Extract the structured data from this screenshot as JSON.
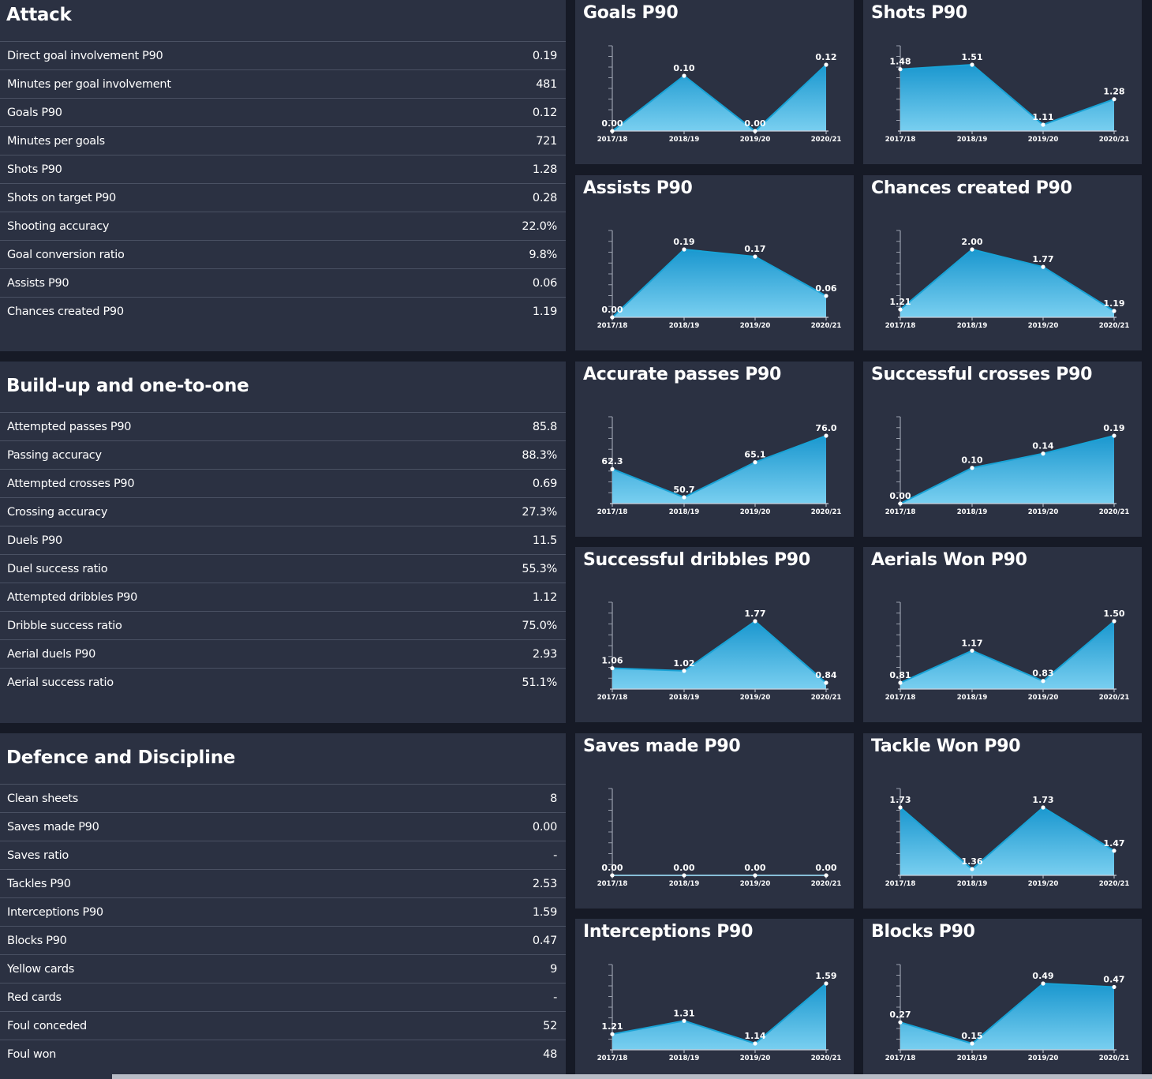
{
  "colors": {
    "panel": "#2b3142",
    "background": "#161a26",
    "line": "#19a3d6",
    "fill_top": "#1a97cf",
    "fill_bottom": "#79cff0"
  },
  "sections": [
    {
      "title": "Attack",
      "rows": [
        {
          "label": "Direct goal involvement P90",
          "value": "0.19"
        },
        {
          "label": "Minutes per goal involvement",
          "value": "481"
        },
        {
          "label": "Goals P90",
          "value": "0.12"
        },
        {
          "label": "Minutes per goals",
          "value": "721"
        },
        {
          "label": "Shots P90",
          "value": "1.28"
        },
        {
          "label": "Shots on target P90",
          "value": "0.28"
        },
        {
          "label": "Shooting accuracy",
          "value": "22.0%"
        },
        {
          "label": "Goal conversion ratio",
          "value": "9.8%"
        },
        {
          "label": "Assists P90",
          "value": "0.06"
        },
        {
          "label": "Chances created P90",
          "value": "1.19"
        }
      ]
    },
    {
      "title": "Build-up and one-to-one",
      "rows": [
        {
          "label": "Attempted passes P90",
          "value": "85.8"
        },
        {
          "label": "Passing accuracy",
          "value": "88.3%"
        },
        {
          "label": "Attempted crosses P90",
          "value": "0.69"
        },
        {
          "label": "Crossing accuracy",
          "value": "27.3%"
        },
        {
          "label": "Duels P90",
          "value": "11.5"
        },
        {
          "label": "Duel success ratio",
          "value": "55.3%"
        },
        {
          "label": "Attempted dribbles P90",
          "value": "1.12"
        },
        {
          "label": "Dribble success ratio",
          "value": "75.0%"
        },
        {
          "label": "Aerial duels P90",
          "value": "2.93"
        },
        {
          "label": "Aerial success ratio",
          "value": "51.1%"
        }
      ]
    },
    {
      "title": "Defence and Discipline",
      "rows": [
        {
          "label": "Clean sheets",
          "value": "8"
        },
        {
          "label": "Saves made P90",
          "value": "0.00"
        },
        {
          "label": "Saves ratio",
          "value": "-"
        },
        {
          "label": "Tackles P90",
          "value": "2.53"
        },
        {
          "label": "Interceptions P90",
          "value": "1.59"
        },
        {
          "label": "Blocks P90",
          "value": "0.47"
        },
        {
          "label": "Yellow cards",
          "value": "9"
        },
        {
          "label": "Red cards",
          "value": "-"
        },
        {
          "label": "Foul conceded",
          "value": "52"
        },
        {
          "label": "Foul won",
          "value": "48"
        }
      ]
    }
  ],
  "chart_data": [
    {
      "type": "area",
      "title": "Goals P90",
      "x": [
        "2017/18",
        "2018/19",
        "2019/20",
        "2020/21"
      ],
      "values": [
        0.0,
        0.1,
        0.0,
        0.12
      ],
      "labels": [
        "0.00",
        "0.10",
        "0.00",
        "0.12"
      ]
    },
    {
      "type": "area",
      "title": "Shots P90",
      "x": [
        "2017/18",
        "2018/19",
        "2019/20",
        "2020/21"
      ],
      "values": [
        1.48,
        1.51,
        1.11,
        1.28
      ],
      "labels": [
        "1.48",
        "1.51",
        "1.11",
        "1.28"
      ]
    },
    {
      "type": "area",
      "title": "Assists P90",
      "x": [
        "2017/18",
        "2018/19",
        "2019/20",
        "2020/21"
      ],
      "values": [
        0.0,
        0.19,
        0.17,
        0.06
      ],
      "labels": [
        "0.00",
        "0.19",
        "0.17",
        "0.06"
      ]
    },
    {
      "type": "area",
      "title": "Chances created P90",
      "x": [
        "2017/18",
        "2018/19",
        "2019/20",
        "2020/21"
      ],
      "values": [
        1.21,
        2.0,
        1.77,
        1.19
      ],
      "labels": [
        "1.21",
        "2.00",
        "1.77",
        "1.19"
      ]
    },
    {
      "type": "area",
      "title": "Accurate passes P90",
      "x": [
        "2017/18",
        "2018/19",
        "2019/20",
        "2020/21"
      ],
      "values": [
        62.3,
        50.7,
        65.1,
        76.0
      ],
      "labels": [
        "62.3",
        "50.7",
        "65.1",
        "76.0"
      ]
    },
    {
      "type": "area",
      "title": "Successful crosses P90",
      "x": [
        "2017/18",
        "2018/19",
        "2019/20",
        "2020/21"
      ],
      "values": [
        0.0,
        0.1,
        0.14,
        0.19
      ],
      "labels": [
        "0.00",
        "0.10",
        "0.14",
        "0.19"
      ]
    },
    {
      "type": "area",
      "title": "Successful dribbles P90",
      "x": [
        "2017/18",
        "2018/19",
        "2019/20",
        "2020/21"
      ],
      "values": [
        1.06,
        1.02,
        1.77,
        0.84
      ],
      "labels": [
        "1.06",
        "1.02",
        "1.77",
        "0.84"
      ]
    },
    {
      "type": "area",
      "title": "Aerials Won P90",
      "x": [
        "2017/18",
        "2018/19",
        "2019/20",
        "2020/21"
      ],
      "values": [
        0.81,
        1.17,
        0.83,
        1.5
      ],
      "labels": [
        "0.81",
        "1.17",
        "0.83",
        "1.50"
      ]
    },
    {
      "type": "area",
      "title": "Saves made P90",
      "x": [
        "2017/18",
        "2018/19",
        "2019/20",
        "2020/21"
      ],
      "values": [
        0.0,
        0.0,
        0.0,
        0.0
      ],
      "labels": [
        "0.00",
        "0.00",
        "0.00",
        "0.00"
      ]
    },
    {
      "type": "area",
      "title": "Tackle Won P90",
      "x": [
        "2017/18",
        "2018/19",
        "2019/20",
        "2020/21"
      ],
      "values": [
        1.73,
        1.36,
        1.73,
        1.47
      ],
      "labels": [
        "1.73",
        "1.36",
        "1.73",
        "1.47"
      ]
    },
    {
      "type": "area",
      "title": "Interceptions P90",
      "x": [
        "2017/18",
        "2018/19",
        "2019/20",
        "2020/21"
      ],
      "values": [
        1.21,
        1.31,
        1.14,
        1.59
      ],
      "labels": [
        "1.21",
        "1.31",
        "1.14",
        "1.59"
      ]
    },
    {
      "type": "area",
      "title": "Blocks P90",
      "x": [
        "2017/18",
        "2018/19",
        "2019/20",
        "2020/21"
      ],
      "values": [
        0.27,
        0.15,
        0.49,
        0.47
      ],
      "labels": [
        "0.27",
        "0.15",
        "0.49",
        "0.47"
      ]
    }
  ]
}
